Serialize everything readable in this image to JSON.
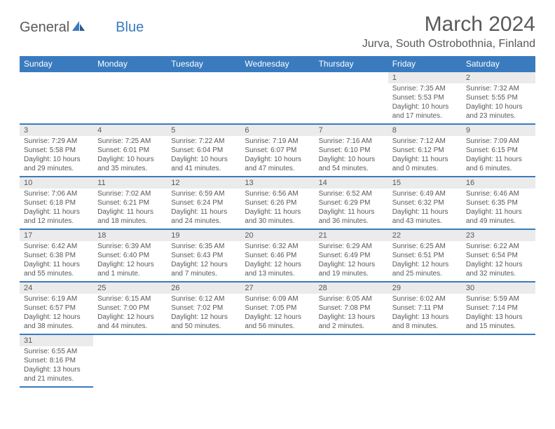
{
  "brand": {
    "general": "General",
    "blue": "Blue"
  },
  "title": "March 2024",
  "location": "Jurva, South Ostrobothnia, Finland",
  "dayNames": [
    "Sunday",
    "Monday",
    "Tuesday",
    "Wednesday",
    "Thursday",
    "Friday",
    "Saturday"
  ],
  "colors": {
    "header_bg": "#3a7bbf",
    "daynum_bg": "#ebebeb",
    "text": "#595959"
  },
  "weeks": [
    [
      null,
      null,
      null,
      null,
      null,
      {
        "n": "1",
        "sr": "Sunrise: 7:35 AM",
        "ss": "Sunset: 5:53 PM",
        "dl1": "Daylight: 10 hours",
        "dl2": "and 17 minutes."
      },
      {
        "n": "2",
        "sr": "Sunrise: 7:32 AM",
        "ss": "Sunset: 5:55 PM",
        "dl1": "Daylight: 10 hours",
        "dl2": "and 23 minutes."
      }
    ],
    [
      {
        "n": "3",
        "sr": "Sunrise: 7:29 AM",
        "ss": "Sunset: 5:58 PM",
        "dl1": "Daylight: 10 hours",
        "dl2": "and 29 minutes."
      },
      {
        "n": "4",
        "sr": "Sunrise: 7:25 AM",
        "ss": "Sunset: 6:01 PM",
        "dl1": "Daylight: 10 hours",
        "dl2": "and 35 minutes."
      },
      {
        "n": "5",
        "sr": "Sunrise: 7:22 AM",
        "ss": "Sunset: 6:04 PM",
        "dl1": "Daylight: 10 hours",
        "dl2": "and 41 minutes."
      },
      {
        "n": "6",
        "sr": "Sunrise: 7:19 AM",
        "ss": "Sunset: 6:07 PM",
        "dl1": "Daylight: 10 hours",
        "dl2": "and 47 minutes."
      },
      {
        "n": "7",
        "sr": "Sunrise: 7:16 AM",
        "ss": "Sunset: 6:10 PM",
        "dl1": "Daylight: 10 hours",
        "dl2": "and 54 minutes."
      },
      {
        "n": "8",
        "sr": "Sunrise: 7:12 AM",
        "ss": "Sunset: 6:12 PM",
        "dl1": "Daylight: 11 hours",
        "dl2": "and 0 minutes."
      },
      {
        "n": "9",
        "sr": "Sunrise: 7:09 AM",
        "ss": "Sunset: 6:15 PM",
        "dl1": "Daylight: 11 hours",
        "dl2": "and 6 minutes."
      }
    ],
    [
      {
        "n": "10",
        "sr": "Sunrise: 7:06 AM",
        "ss": "Sunset: 6:18 PM",
        "dl1": "Daylight: 11 hours",
        "dl2": "and 12 minutes."
      },
      {
        "n": "11",
        "sr": "Sunrise: 7:02 AM",
        "ss": "Sunset: 6:21 PM",
        "dl1": "Daylight: 11 hours",
        "dl2": "and 18 minutes."
      },
      {
        "n": "12",
        "sr": "Sunrise: 6:59 AM",
        "ss": "Sunset: 6:24 PM",
        "dl1": "Daylight: 11 hours",
        "dl2": "and 24 minutes."
      },
      {
        "n": "13",
        "sr": "Sunrise: 6:56 AM",
        "ss": "Sunset: 6:26 PM",
        "dl1": "Daylight: 11 hours",
        "dl2": "and 30 minutes."
      },
      {
        "n": "14",
        "sr": "Sunrise: 6:52 AM",
        "ss": "Sunset: 6:29 PM",
        "dl1": "Daylight: 11 hours",
        "dl2": "and 36 minutes."
      },
      {
        "n": "15",
        "sr": "Sunrise: 6:49 AM",
        "ss": "Sunset: 6:32 PM",
        "dl1": "Daylight: 11 hours",
        "dl2": "and 43 minutes."
      },
      {
        "n": "16",
        "sr": "Sunrise: 6:46 AM",
        "ss": "Sunset: 6:35 PM",
        "dl1": "Daylight: 11 hours",
        "dl2": "and 49 minutes."
      }
    ],
    [
      {
        "n": "17",
        "sr": "Sunrise: 6:42 AM",
        "ss": "Sunset: 6:38 PM",
        "dl1": "Daylight: 11 hours",
        "dl2": "and 55 minutes."
      },
      {
        "n": "18",
        "sr": "Sunrise: 6:39 AM",
        "ss": "Sunset: 6:40 PM",
        "dl1": "Daylight: 12 hours",
        "dl2": "and 1 minute."
      },
      {
        "n": "19",
        "sr": "Sunrise: 6:35 AM",
        "ss": "Sunset: 6:43 PM",
        "dl1": "Daylight: 12 hours",
        "dl2": "and 7 minutes."
      },
      {
        "n": "20",
        "sr": "Sunrise: 6:32 AM",
        "ss": "Sunset: 6:46 PM",
        "dl1": "Daylight: 12 hours",
        "dl2": "and 13 minutes."
      },
      {
        "n": "21",
        "sr": "Sunrise: 6:29 AM",
        "ss": "Sunset: 6:49 PM",
        "dl1": "Daylight: 12 hours",
        "dl2": "and 19 minutes."
      },
      {
        "n": "22",
        "sr": "Sunrise: 6:25 AM",
        "ss": "Sunset: 6:51 PM",
        "dl1": "Daylight: 12 hours",
        "dl2": "and 25 minutes."
      },
      {
        "n": "23",
        "sr": "Sunrise: 6:22 AM",
        "ss": "Sunset: 6:54 PM",
        "dl1": "Daylight: 12 hours",
        "dl2": "and 32 minutes."
      }
    ],
    [
      {
        "n": "24",
        "sr": "Sunrise: 6:19 AM",
        "ss": "Sunset: 6:57 PM",
        "dl1": "Daylight: 12 hours",
        "dl2": "and 38 minutes."
      },
      {
        "n": "25",
        "sr": "Sunrise: 6:15 AM",
        "ss": "Sunset: 7:00 PM",
        "dl1": "Daylight: 12 hours",
        "dl2": "and 44 minutes."
      },
      {
        "n": "26",
        "sr": "Sunrise: 6:12 AM",
        "ss": "Sunset: 7:02 PM",
        "dl1": "Daylight: 12 hours",
        "dl2": "and 50 minutes."
      },
      {
        "n": "27",
        "sr": "Sunrise: 6:09 AM",
        "ss": "Sunset: 7:05 PM",
        "dl1": "Daylight: 12 hours",
        "dl2": "and 56 minutes."
      },
      {
        "n": "28",
        "sr": "Sunrise: 6:05 AM",
        "ss": "Sunset: 7:08 PM",
        "dl1": "Daylight: 13 hours",
        "dl2": "and 2 minutes."
      },
      {
        "n": "29",
        "sr": "Sunrise: 6:02 AM",
        "ss": "Sunset: 7:11 PM",
        "dl1": "Daylight: 13 hours",
        "dl2": "and 8 minutes."
      },
      {
        "n": "30",
        "sr": "Sunrise: 5:59 AM",
        "ss": "Sunset: 7:14 PM",
        "dl1": "Daylight: 13 hours",
        "dl2": "and 15 minutes."
      }
    ],
    [
      {
        "n": "31",
        "sr": "Sunrise: 6:55 AM",
        "ss": "Sunset: 8:16 PM",
        "dl1": "Daylight: 13 hours",
        "dl2": "and 21 minutes."
      },
      null,
      null,
      null,
      null,
      null,
      null
    ]
  ]
}
